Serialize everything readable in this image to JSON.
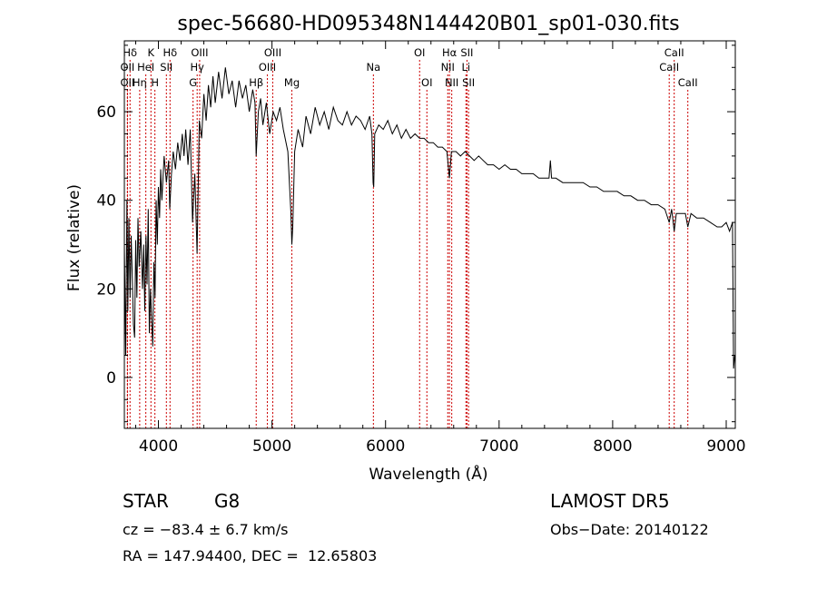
{
  "chart_data": {
    "type": "line",
    "title": "spec-56680-HD095348N144420B01_sp01-030.fits",
    "xlabel": "Wavelength (Å)",
    "ylabel": "Flux (relative)",
    "xlim": [
      3700,
      9080
    ],
    "ylim": [
      -11.5,
      76
    ],
    "xticks": [
      4000,
      5000,
      6000,
      7000,
      8000,
      9000
    ],
    "yticks": [
      0,
      20,
      40,
      60
    ],
    "grid": false,
    "series": [
      {
        "points": [
          [
            3700,
            30
          ],
          [
            3712,
            5
          ],
          [
            3722,
            40
          ],
          [
            3730,
            15
          ],
          [
            3740,
            36
          ],
          [
            3750,
            18
          ],
          [
            3760,
            32
          ],
          [
            3770,
            22
          ],
          [
            3780,
            12
          ],
          [
            3790,
            9
          ],
          [
            3800,
            31
          ],
          [
            3810,
            18
          ],
          [
            3820,
            36
          ],
          [
            3830,
            25
          ],
          [
            3845,
            33
          ],
          [
            3860,
            20
          ],
          [
            3870,
            30
          ],
          [
            3880,
            15
          ],
          [
            3890,
            32
          ],
          [
            3900,
            21
          ],
          [
            3910,
            38
          ],
          [
            3920,
            10
          ],
          [
            3930,
            20
          ],
          [
            3940,
            13
          ],
          [
            3950,
            7
          ],
          [
            3960,
            26
          ],
          [
            3970,
            18
          ],
          [
            3980,
            40
          ],
          [
            3990,
            30
          ],
          [
            4000,
            43
          ],
          [
            4010,
            36
          ],
          [
            4020,
            47
          ],
          [
            4030,
            40
          ],
          [
            4050,
            50
          ],
          [
            4070,
            44
          ],
          [
            4090,
            49
          ],
          [
            4100,
            38
          ],
          [
            4115,
            46
          ],
          [
            4130,
            51
          ],
          [
            4150,
            47
          ],
          [
            4170,
            53
          ],
          [
            4190,
            49
          ],
          [
            4210,
            55
          ],
          [
            4225,
            50
          ],
          [
            4240,
            56
          ],
          [
            4260,
            48
          ],
          [
            4280,
            56
          ],
          [
            4300,
            35
          ],
          [
            4320,
            46
          ],
          [
            4340,
            28
          ],
          [
            4360,
            58
          ],
          [
            4380,
            54
          ],
          [
            4400,
            64
          ],
          [
            4420,
            58
          ],
          [
            4440,
            66
          ],
          [
            4460,
            61
          ],
          [
            4480,
            68
          ],
          [
            4500,
            62
          ],
          [
            4530,
            69
          ],
          [
            4560,
            63
          ],
          [
            4590,
            70
          ],
          [
            4620,
            64
          ],
          [
            4650,
            67
          ],
          [
            4680,
            61
          ],
          [
            4710,
            67
          ],
          [
            4740,
            63
          ],
          [
            4770,
            66
          ],
          [
            4800,
            60
          ],
          [
            4830,
            65
          ],
          [
            4850,
            62
          ],
          [
            4861,
            50
          ],
          [
            4880,
            60
          ],
          [
            4900,
            63
          ],
          [
            4920,
            57
          ],
          [
            4950,
            62
          ],
          [
            4980,
            55
          ],
          [
            5010,
            60
          ],
          [
            5040,
            58
          ],
          [
            5070,
            61
          ],
          [
            5100,
            56
          ],
          [
            5140,
            51
          ],
          [
            5167,
            37
          ],
          [
            5175,
            30
          ],
          [
            5183,
            34
          ],
          [
            5200,
            51
          ],
          [
            5230,
            56
          ],
          [
            5270,
            52
          ],
          [
            5300,
            59
          ],
          [
            5340,
            55
          ],
          [
            5380,
            61
          ],
          [
            5420,
            57
          ],
          [
            5460,
            60
          ],
          [
            5500,
            56
          ],
          [
            5540,
            61
          ],
          [
            5580,
            58
          ],
          [
            5620,
            57
          ],
          [
            5660,
            60
          ],
          [
            5700,
            57
          ],
          [
            5740,
            59
          ],
          [
            5780,
            58
          ],
          [
            5820,
            56
          ],
          [
            5860,
            59
          ],
          [
            5880,
            55
          ],
          [
            5890,
            44
          ],
          [
            5896,
            43
          ],
          [
            5905,
            55
          ],
          [
            5940,
            57
          ],
          [
            5980,
            56
          ],
          [
            6020,
            58
          ],
          [
            6060,
            55
          ],
          [
            6100,
            57
          ],
          [
            6140,
            54
          ],
          [
            6180,
            56
          ],
          [
            6220,
            54
          ],
          [
            6260,
            55
          ],
          [
            6300,
            54
          ],
          [
            6340,
            54
          ],
          [
            6380,
            53
          ],
          [
            6420,
            53
          ],
          [
            6460,
            52
          ],
          [
            6500,
            52
          ],
          [
            6540,
            51
          ],
          [
            6563,
            45
          ],
          [
            6580,
            51
          ],
          [
            6620,
            51
          ],
          [
            6660,
            50
          ],
          [
            6700,
            51
          ],
          [
            6740,
            50
          ],
          [
            6780,
            49
          ],
          [
            6820,
            50
          ],
          [
            6860,
            49
          ],
          [
            6900,
            48
          ],
          [
            6950,
            48
          ],
          [
            7000,
            47
          ],
          [
            7050,
            48
          ],
          [
            7100,
            47
          ],
          [
            7150,
            47
          ],
          [
            7200,
            46
          ],
          [
            7250,
            46
          ],
          [
            7300,
            46
          ],
          [
            7350,
            45
          ],
          [
            7400,
            45
          ],
          [
            7440,
            45
          ],
          [
            7452,
            49
          ],
          [
            7462,
            45
          ],
          [
            7500,
            45
          ],
          [
            7560,
            44
          ],
          [
            7620,
            44
          ],
          [
            7680,
            44
          ],
          [
            7740,
            44
          ],
          [
            7800,
            43
          ],
          [
            7860,
            43
          ],
          [
            7920,
            42
          ],
          [
            7980,
            42
          ],
          [
            8040,
            42
          ],
          [
            8100,
            41
          ],
          [
            8160,
            41
          ],
          [
            8220,
            40
          ],
          [
            8280,
            40
          ],
          [
            8340,
            39
          ],
          [
            8400,
            39
          ],
          [
            8460,
            38
          ],
          [
            8498,
            35
          ],
          [
            8520,
            38
          ],
          [
            8542,
            33
          ],
          [
            8560,
            37
          ],
          [
            8600,
            37
          ],
          [
            8640,
            37
          ],
          [
            8662,
            34
          ],
          [
            8690,
            37
          ],
          [
            8740,
            36
          ],
          [
            8800,
            36
          ],
          [
            8860,
            35
          ],
          [
            8920,
            34
          ],
          [
            8960,
            34
          ],
          [
            9000,
            35
          ],
          [
            9030,
            33
          ],
          [
            9055,
            35
          ],
          [
            9065,
            2
          ],
          [
            9075,
            5
          ]
        ]
      }
    ],
    "line_markers": [
      {
        "label": "Hδ",
        "x": 3750,
        "row": 1
      },
      {
        "label": "OII",
        "x": 3727,
        "row": 2
      },
      {
        "label": "OII",
        "x": 3727,
        "row": 3
      },
      {
        "label": "Hη",
        "x": 3835,
        "row": 3
      },
      {
        "label": "K",
        "x": 3934,
        "row": 1
      },
      {
        "label": "HeI",
        "x": 3889,
        "row": 2
      },
      {
        "label": "H",
        "x": 3969,
        "row": 3
      },
      {
        "label": "Hδ",
        "x": 4102,
        "row": 1
      },
      {
        "label": "SII",
        "x": 4070,
        "row": 2
      },
      {
        "label": "OIII",
        "x": 4363,
        "row": 1
      },
      {
        "label": "Hγ",
        "x": 4341,
        "row": 2
      },
      {
        "label": "G",
        "x": 4305,
        "row": 3
      },
      {
        "label": "OIII",
        "x": 5007,
        "row": 1
      },
      {
        "label": "OIII",
        "x": 4959,
        "row": 2
      },
      {
        "label": "Hβ",
        "x": 4861,
        "row": 3
      },
      {
        "label": "Mg",
        "x": 5175,
        "row": 3
      },
      {
        "label": "Na",
        "x": 5893,
        "row": 2
      },
      {
        "label": "OI",
        "x": 6300,
        "row": 1
      },
      {
        "label": "OI",
        "x": 6364,
        "row": 3
      },
      {
        "label": "Hα",
        "x": 6563,
        "row": 1
      },
      {
        "label": "NII",
        "x": 6548,
        "row": 2
      },
      {
        "label": "NII",
        "x": 6583,
        "row": 3
      },
      {
        "label": "SII",
        "x": 6717,
        "row": 1
      },
      {
        "label": "Li",
        "x": 6708,
        "row": 2
      },
      {
        "label": "SII",
        "x": 6731,
        "row": 3
      },
      {
        "label": "CaII",
        "x": 8542,
        "row": 1
      },
      {
        "label": "CaII",
        "x": 8498,
        "row": 2
      },
      {
        "label": "CaII",
        "x": 8662,
        "row": 3
      }
    ],
    "marker_color": "#cc0000",
    "line_color": "#000000"
  },
  "info": {
    "object_class": "STAR",
    "subclass": "G8",
    "survey": "LAMOST DR5",
    "cz": "cz = −83.4 ± 6.7 km/s",
    "obs_date": "Obs−Date: 20140122",
    "coords": "RA = 147.94400, DEC =  12.65803"
  }
}
